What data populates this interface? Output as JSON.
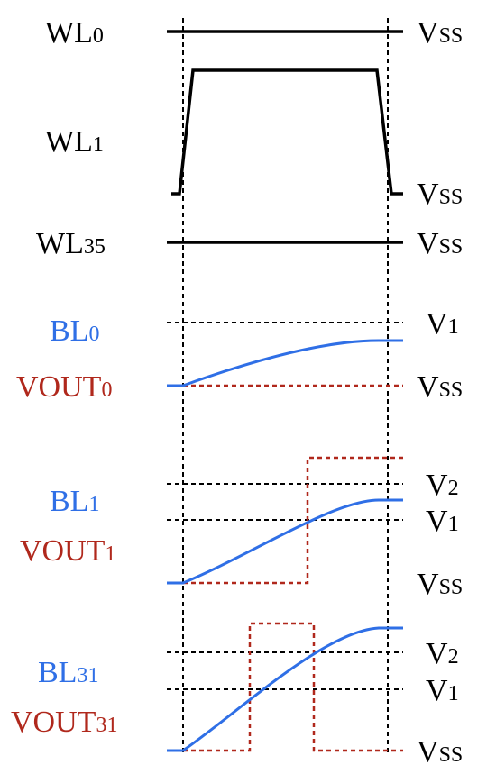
{
  "signals": {
    "wl0": {
      "name": "WL",
      "sub": "0",
      "right": "V",
      "right_sub": "SS"
    },
    "wl1": {
      "name": "WL",
      "sub": "1",
      "right": "V",
      "right_sub": "SS"
    },
    "wl35": {
      "name": "WL",
      "sub": "35",
      "right": "V",
      "right_sub": "SS"
    },
    "bl0": {
      "name": "BL",
      "sub": "0"
    },
    "vout0": {
      "name": "VOUT",
      "sub": "0"
    },
    "bl1": {
      "name": "BL",
      "sub": "1"
    },
    "vout1": {
      "name": "VOUT",
      "sub": "1"
    },
    "bl31": {
      "name": "BL",
      "sub": "31"
    },
    "vout31": {
      "name": "VOUT",
      "sub": "31"
    }
  },
  "levels": {
    "g0": {
      "v1": {
        "name": "V",
        "sub": "1"
      },
      "vss": {
        "name": "V",
        "sub": "SS"
      }
    },
    "g1": {
      "v2": {
        "name": "V",
        "sub": "2"
      },
      "v1": {
        "name": "V",
        "sub": "1"
      },
      "vss": {
        "name": "V",
        "sub": "SS"
      }
    },
    "g2": {
      "v2": {
        "name": "V",
        "sub": "2"
      },
      "v1": {
        "name": "V",
        "sub": "1"
      },
      "vss": {
        "name": "V",
        "sub": "SS"
      }
    }
  },
  "colors": {
    "wordline": "#000000",
    "bitline": "#2f6fe6",
    "vout": "#b0281c",
    "guide": "#000000"
  }
}
